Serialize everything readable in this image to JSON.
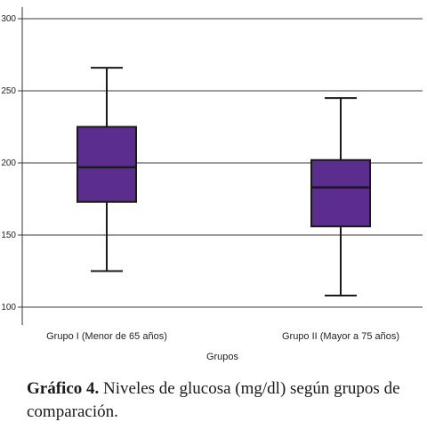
{
  "chart_data": {
    "type": "box",
    "categories": [
      "Grupo I (Menor de 65 años)",
      "Grupo II (Mayor a 75 años)"
    ],
    "boxes": [
      {
        "category": "Grupo I (Menor de 65 años)",
        "min": 125,
        "q1": 173,
        "median": 197,
        "q3": 225,
        "max": 266
      },
      {
        "category": "Grupo II (Mayor a 75 años)",
        "min": 108,
        "q1": 156,
        "median": 183,
        "q3": 202,
        "max": 245
      }
    ],
    "xlabel": "Grupos",
    "ylabel": "",
    "ylim": [
      95,
      305
    ],
    "yticks": [
      100,
      150,
      200,
      250,
      300
    ],
    "grid": true,
    "box_color": "#5b2d8e",
    "box_edge_color": "#1a1a1a"
  },
  "caption": {
    "label": "Gráfico 4.",
    "text": " Niveles de glucosa (mg/dl) según grupos de comparación."
  }
}
